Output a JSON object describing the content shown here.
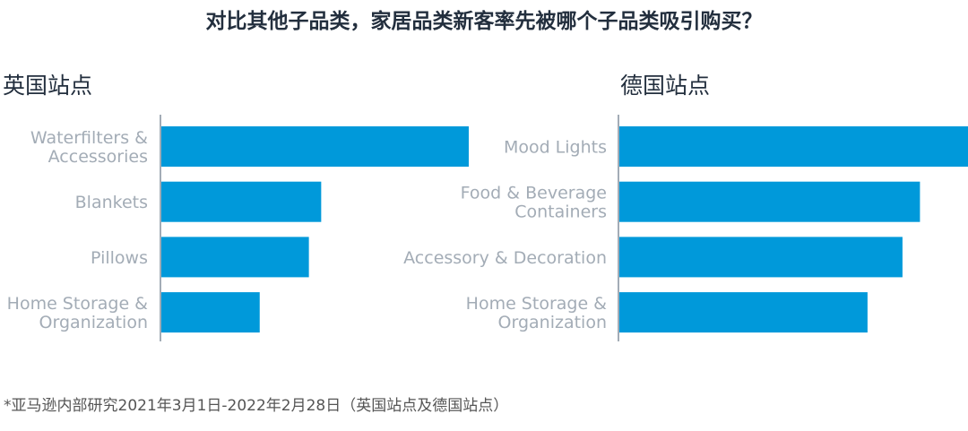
{
  "title": "对比其他子品类，家居品类新客率先被哪个子品类吸引购买？",
  "footnote": "*亚马逊内部研究2021年3月1日-2022年2月28日（英国站点及德国站点）",
  "colors": {
    "bar": "#0099DA",
    "axis": "#a3acb6",
    "label": "#a3acb6",
    "title": "#232f3e"
  },
  "chart_data": [
    {
      "type": "bar",
      "orientation": "horizontal",
      "title": "英国站点",
      "categories": [
        [
          "Waterfilters &",
          "Accessories"
        ],
        [
          "Blankets"
        ],
        [
          "Pillows"
        ],
        [
          "Home Storage &",
          "Organization"
        ]
      ],
      "values": [
        100,
        52,
        48,
        32
      ],
      "value_unit": "relative index (no axis shown)",
      "xlim": [
        0,
        114
      ]
    },
    {
      "type": "bar",
      "orientation": "horizontal",
      "title": "德国站点",
      "categories": [
        [
          "Mood Lights"
        ],
        [
          "Food & Beverage",
          "Containers"
        ],
        [
          "Accessory & Decoration"
        ],
        [
          "Home Storage &",
          "Organization"
        ]
      ],
      "values": [
        100,
        86,
        81,
        71
      ],
      "value_unit": "relative index (no axis shown)",
      "xlim": [
        0,
        100
      ]
    }
  ]
}
